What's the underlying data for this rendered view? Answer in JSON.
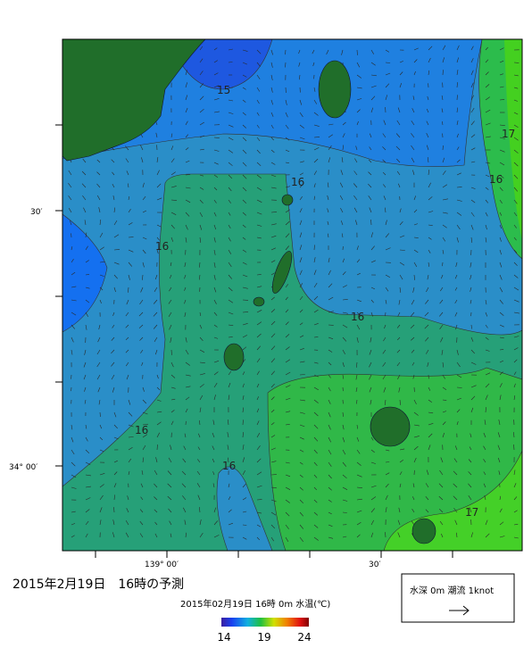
{
  "map": {
    "axis_labels": {
      "left": [
        "30′",
        "34° 00′"
      ],
      "bottom": [
        "139° 00′",
        "30′"
      ]
    },
    "contour_labels": [
      "15",
      "16",
      "16",
      "16",
      "16",
      "16",
      "16",
      "17",
      "17"
    ]
  },
  "caption": {
    "title": "2015年2月19日　16時の予測",
    "subtitle": "2015年02月19日 16時 0m 水温(℃)"
  },
  "colorbar": {
    "ticks": [
      14,
      19,
      24
    ]
  },
  "legend": {
    "text": "水深 0m 潮流 1knot"
  }
}
